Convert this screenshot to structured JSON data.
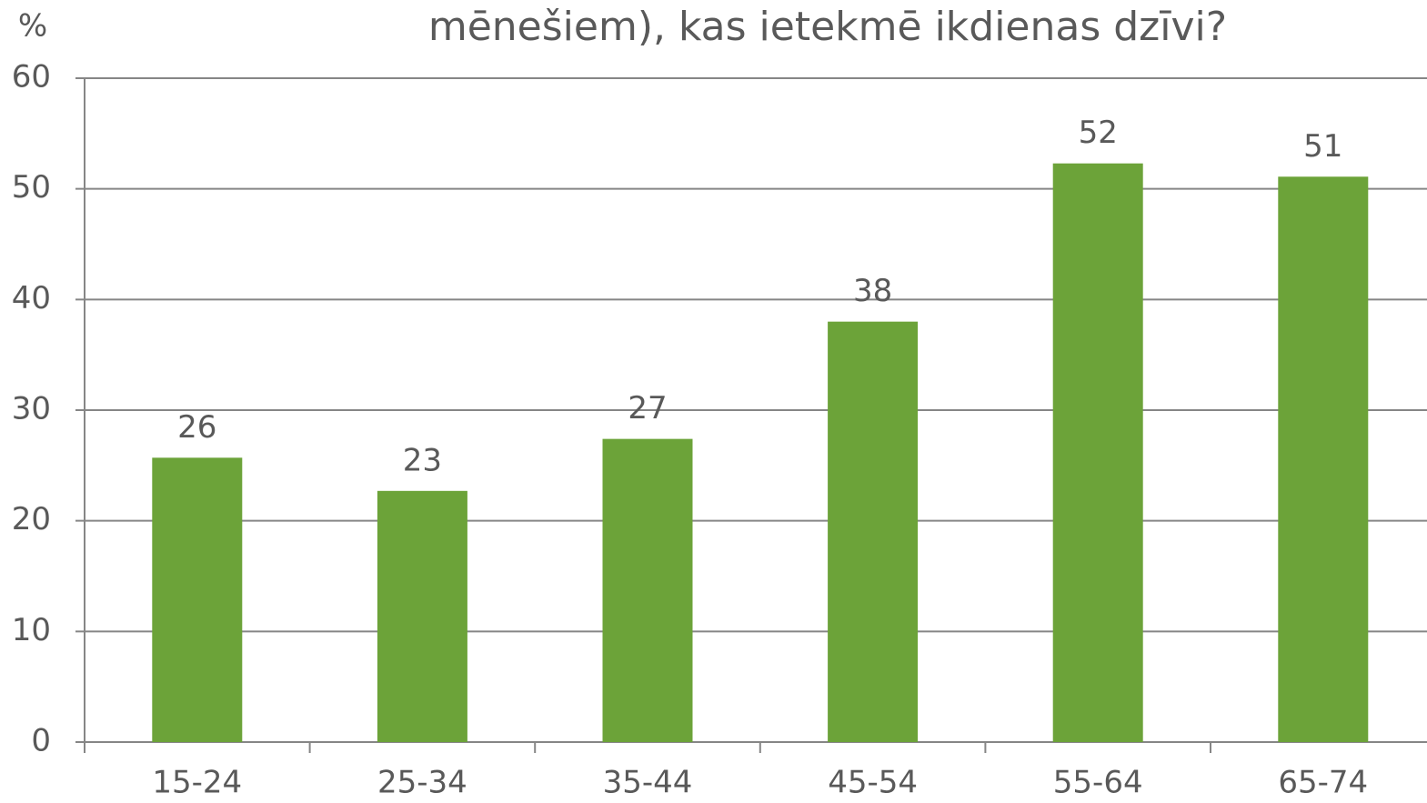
{
  "chart_data": {
    "type": "bar",
    "title": "mēnešiem), kas ietekmē ikdienas dzīvi?",
    "y_label": "%",
    "categories": [
      "15-24",
      "25-34",
      "35-44",
      "45-54",
      "55-64",
      "65-74"
    ],
    "values": [
      25.7,
      22.7,
      27.4,
      38.0,
      52.3,
      51.1
    ],
    "value_labels": [
      "26",
      "23",
      "27",
      "38",
      "52",
      "51"
    ],
    "color": "#6ca339",
    "ylim": [
      0,
      60
    ],
    "yticks": [
      0,
      10,
      20,
      30,
      40,
      50,
      60
    ],
    "grid": true
  }
}
